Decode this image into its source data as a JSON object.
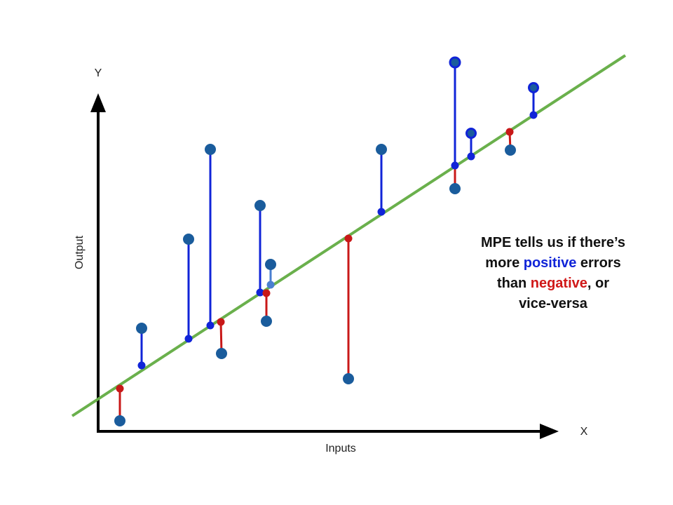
{
  "axes": {
    "y_label": "Y",
    "x_label": "X",
    "y_title": "Output",
    "x_title": "Inputs"
  },
  "annotation": {
    "lines": [
      [
        "MPE tells us if there’s"
      ],
      [
        "more",
        "positive",
        "errors"
      ],
      [
        "than",
        "negative",
        ", or"
      ],
      [
        "vice-versa"
      ]
    ]
  }
}
